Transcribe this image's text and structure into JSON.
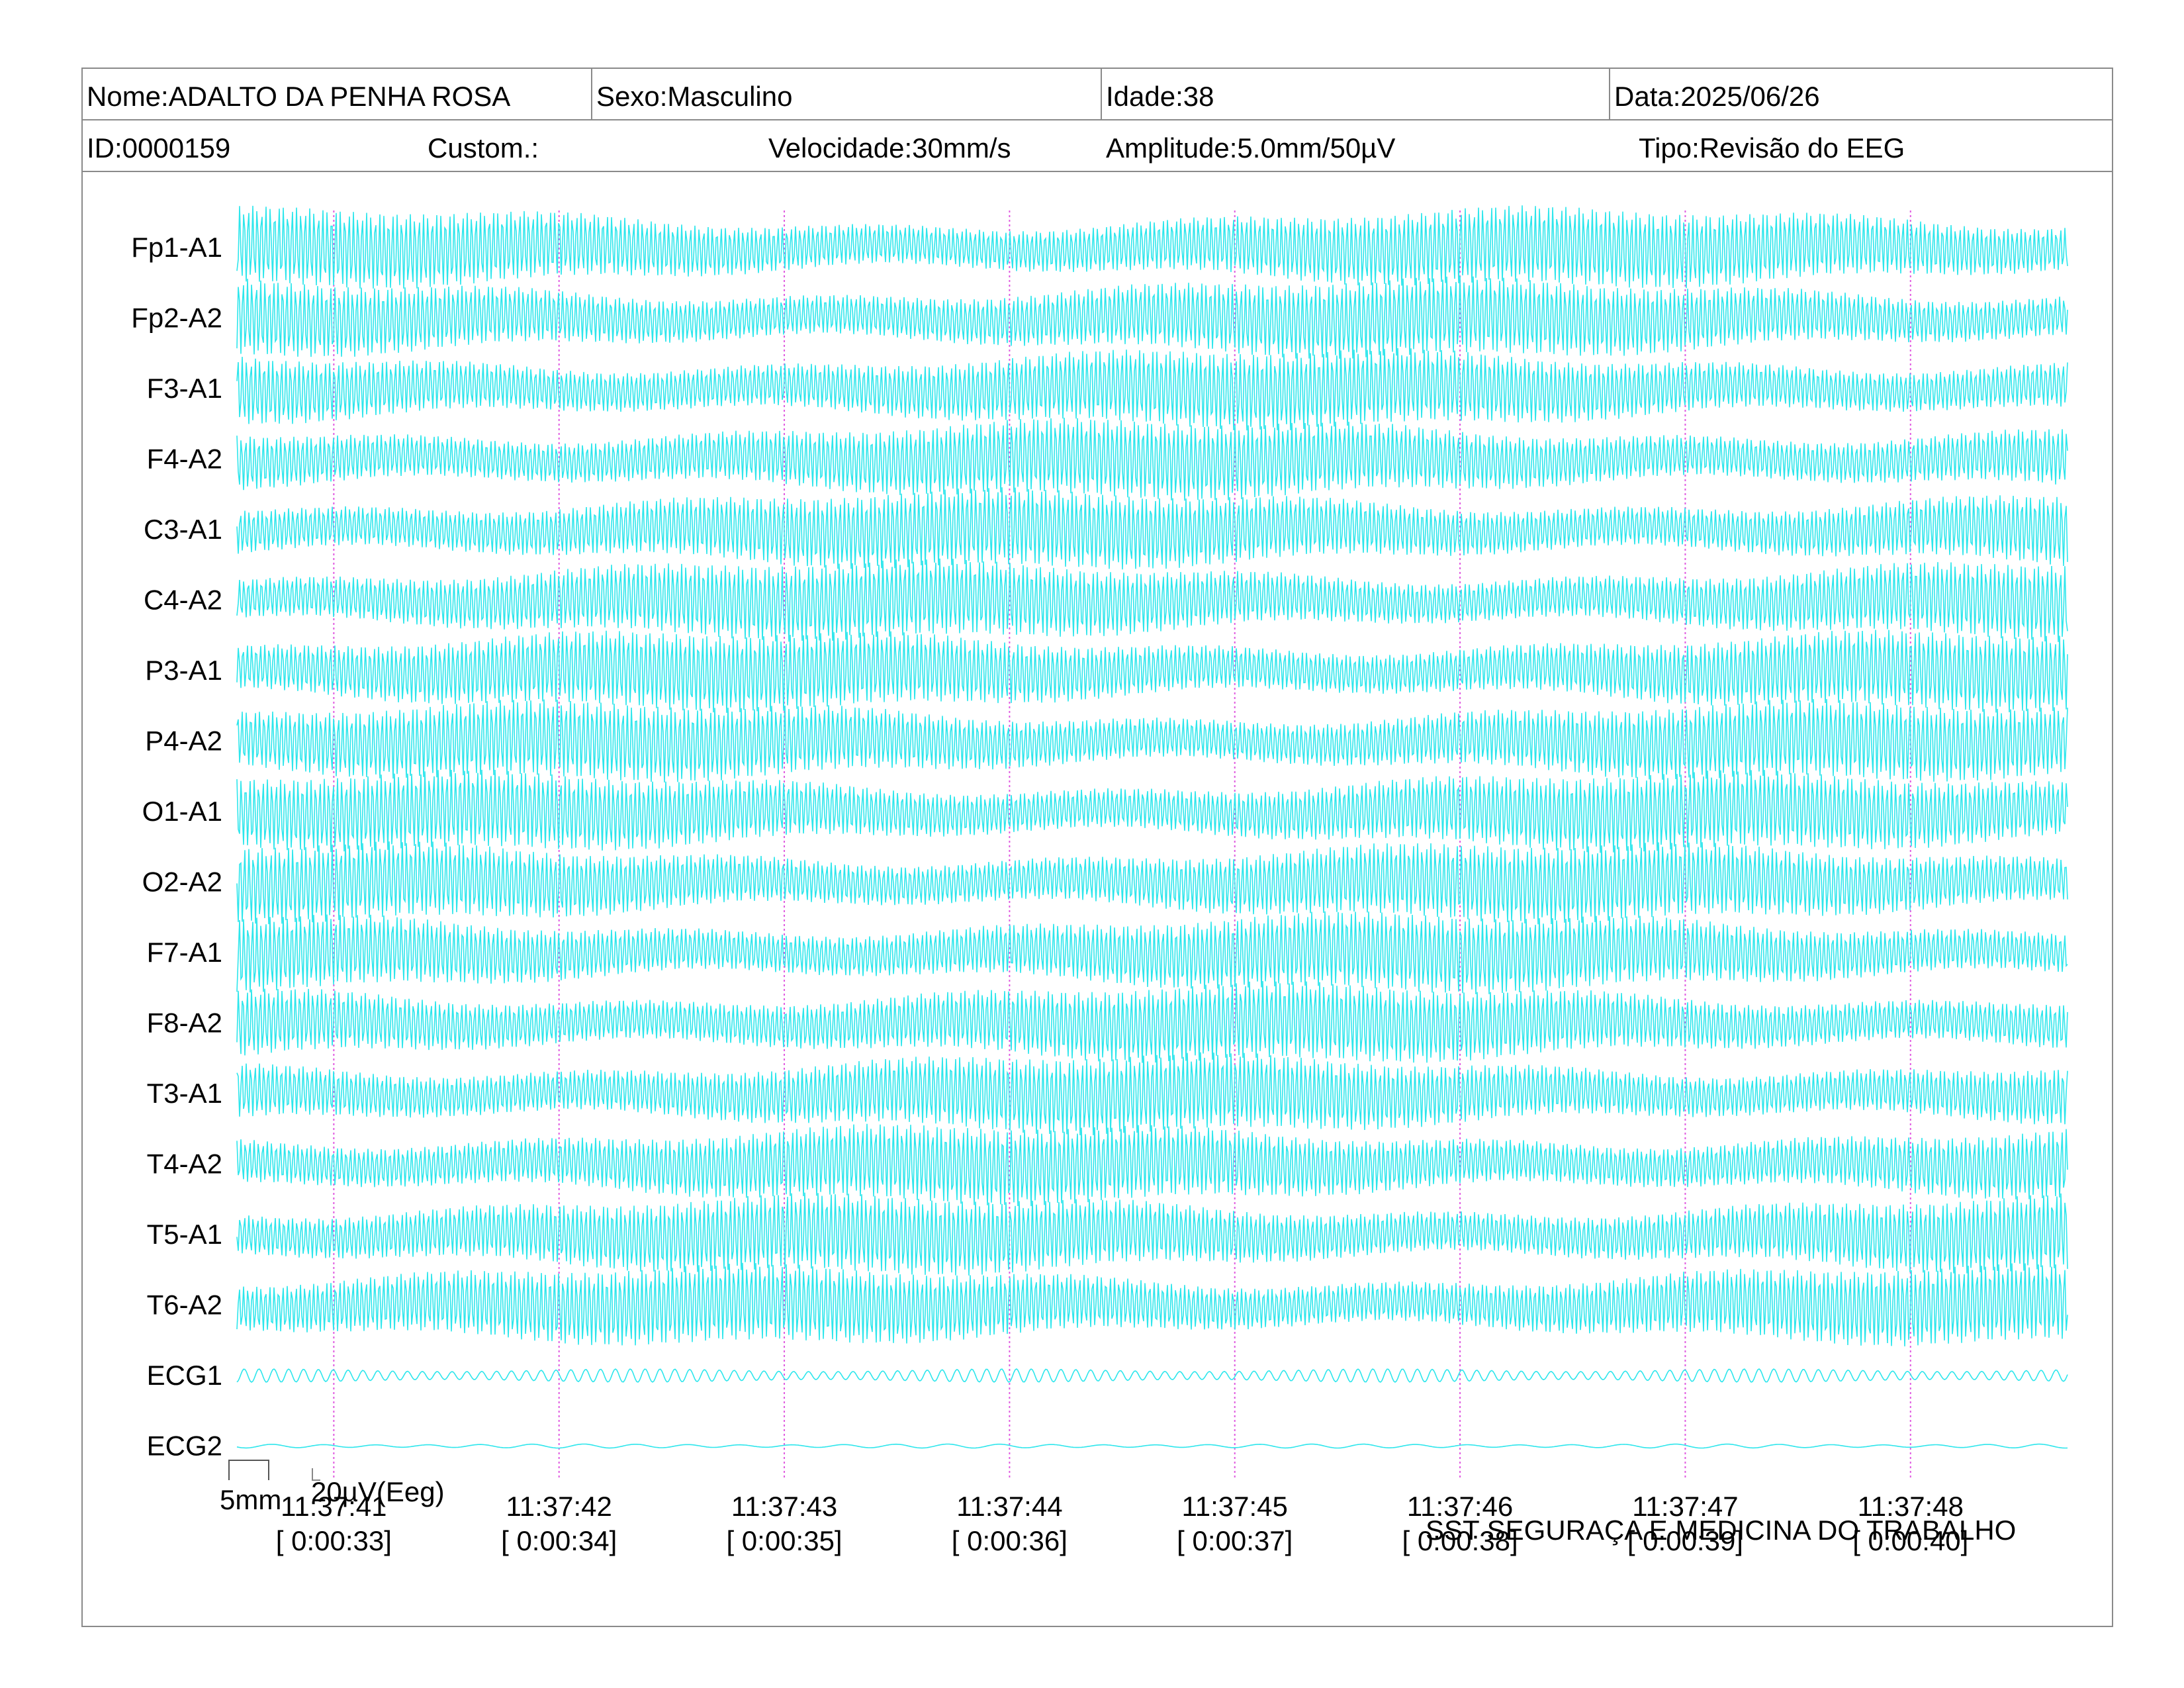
{
  "header": {
    "nome": "Nome:ADALTO DA PENHA ROSA",
    "sexo": "Sexo:Masculino",
    "idade": "Idade:38",
    "data": "Data:2025/06/26",
    "id": "ID:0000159",
    "custom": "Custom.:",
    "velocidade": "Velocidade:30mm/s",
    "amplitude": "Amplitude:5.0mm/50µV",
    "tipo": "Tipo:Revisão do EEG"
  },
  "footer": {
    "scale_mm": "5mm",
    "scale_uv": "20µV(Eeg)",
    "organization": "SST SEGURAÇA E MEDICINA DO TRABALHO"
  },
  "colors": {
    "trace": "#2ee6ec",
    "second_marker": "#e05ae0",
    "border": "#8a8a8a"
  },
  "chart_data": {
    "type": "line",
    "title": "",
    "channels": [
      "Fp1-A1",
      "Fp2-A2",
      "F3-A1",
      "F4-A2",
      "C3-A1",
      "C4-A2",
      "P3-A1",
      "P4-A2",
      "O1-A1",
      "O2-A2",
      "F7-A1",
      "F8-A2",
      "T3-A1",
      "T4-A2",
      "T5-A1",
      "T6-A2",
      "ECG1",
      "ECG2"
    ],
    "time_ticks": [
      {
        "clock": "11:37:41",
        "elapsed": "[ 0:00:33]"
      },
      {
        "clock": "11:37:42",
        "elapsed": "[ 0:00:34]"
      },
      {
        "clock": "11:37:43",
        "elapsed": "[ 0:00:35]"
      },
      {
        "clock": "11:37:44",
        "elapsed": "[ 0:00:36]"
      },
      {
        "clock": "11:37:45",
        "elapsed": "[ 0:00:37]"
      },
      {
        "clock": "11:37:46",
        "elapsed": "[ 0:00:38]"
      },
      {
        "clock": "11:37:47",
        "elapsed": "[ 0:00:39]"
      },
      {
        "clock": "11:37:48",
        "elapsed": "[ 0:00:40]"
      }
    ],
    "x_range_seconds": [
      32.57,
      40.7
    ],
    "gridlines": "dotted vertical line each second",
    "legend": "none"
  }
}
